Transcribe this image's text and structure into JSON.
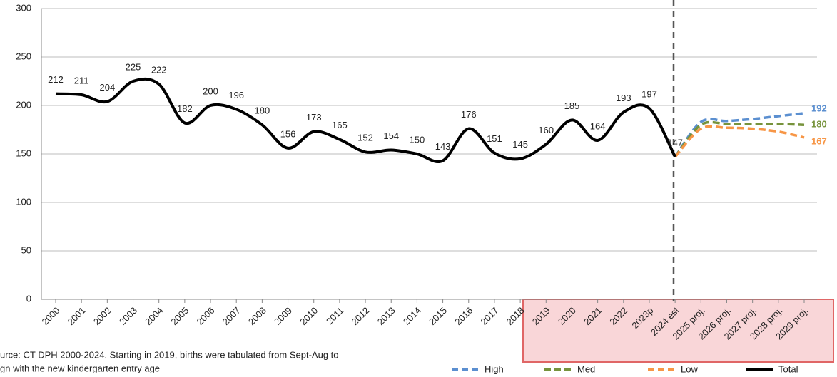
{
  "chart_data": {
    "type": "line",
    "categories": [
      "2000",
      "2001",
      "2002",
      "2003",
      "2004",
      "2005",
      "2006",
      "2007",
      "2008",
      "2009",
      "2010",
      "2011",
      "2012",
      "2013",
      "2014",
      "2015",
      "2016",
      "2017",
      "2018",
      "2019",
      "2020",
      "2021",
      "2022",
      "2023p",
      "2024 est",
      "2025 proj.",
      "2026 proj.",
      "2027 proj.",
      "2028 proj.",
      "2029 proj."
    ],
    "series": [
      {
        "name": "High",
        "color": "#5b8fd0",
        "dashed": true,
        "values": [
          null,
          null,
          null,
          null,
          null,
          null,
          null,
          null,
          null,
          null,
          null,
          null,
          null,
          null,
          null,
          null,
          null,
          null,
          null,
          null,
          null,
          null,
          null,
          null,
          147,
          183,
          184,
          186,
          189,
          192
        ]
      },
      {
        "name": "Med",
        "color": "#77933c",
        "dashed": true,
        "values": [
          null,
          null,
          null,
          null,
          null,
          null,
          null,
          null,
          null,
          null,
          null,
          null,
          null,
          null,
          null,
          null,
          null,
          null,
          null,
          null,
          null,
          null,
          null,
          null,
          147,
          180,
          181,
          181,
          181,
          180
        ]
      },
      {
        "name": "Low",
        "color": "#f79646",
        "dashed": true,
        "values": [
          null,
          null,
          null,
          null,
          null,
          null,
          null,
          null,
          null,
          null,
          null,
          null,
          null,
          null,
          null,
          null,
          null,
          null,
          null,
          null,
          null,
          null,
          null,
          null,
          147,
          176,
          177,
          176,
          173,
          167
        ]
      },
      {
        "name": "Total",
        "color": "#000000",
        "dashed": false,
        "values": [
          212,
          211,
          204,
          225,
          222,
          182,
          200,
          196,
          180,
          156,
          173,
          165,
          152,
          154,
          150,
          143,
          176,
          151,
          145,
          160,
          185,
          164,
          193,
          197,
          147,
          null,
          null,
          null,
          null,
          null
        ]
      }
    ],
    "ylim": [
      0,
      300
    ],
    "yticks": [
      0,
      50,
      100,
      150,
      200,
      250,
      300
    ],
    "grid": true,
    "legend": "bottom",
    "source": [
      "urce:  CT DPH 2000-2024.  Starting in 2019, births were tabulated from Sept-Aug to",
      "gn with the new kindergarten entry age"
    ]
  }
}
